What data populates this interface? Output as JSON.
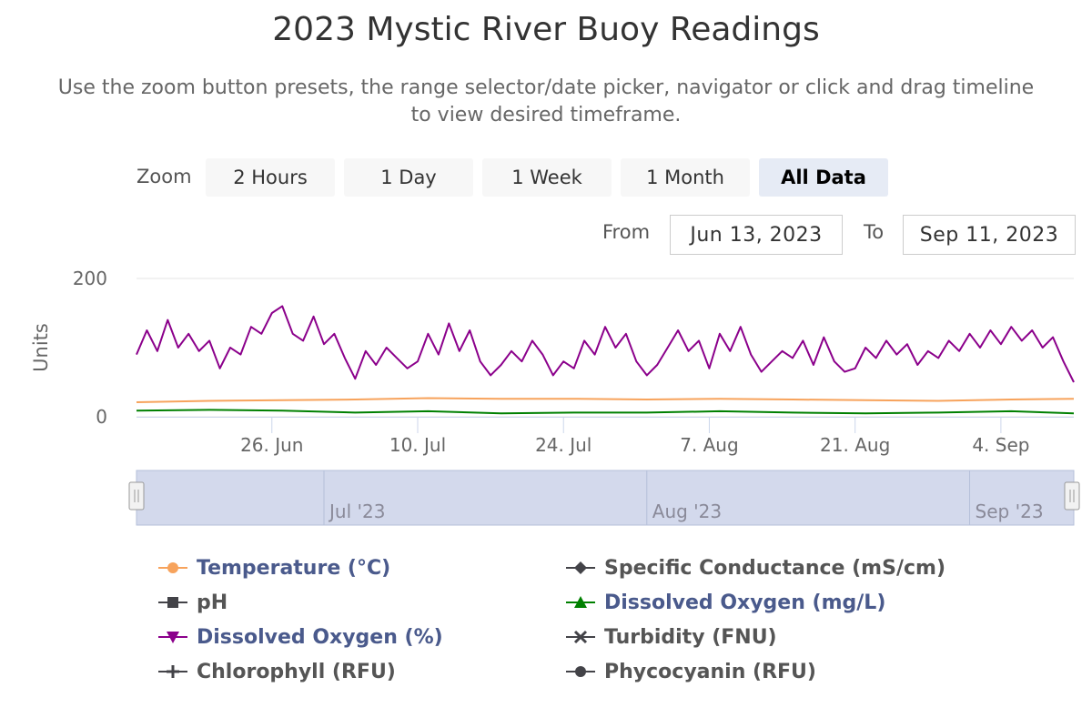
{
  "header": {
    "title": "2023 Mystic River Buoy Readings",
    "subtitle": "Use the zoom button presets, the range selector/date picker, navigator or click and drag timeline to view desired timeframe."
  },
  "range_selector": {
    "zoom_label": "Zoom",
    "buttons": [
      "2 Hours",
      "1 Day",
      "1 Week",
      "1 Month",
      "All Data"
    ],
    "active_button": "All Data",
    "from_label": "From",
    "from_value": "Jun 13, 2023",
    "to_label": "To",
    "to_value": "Sep 11, 2023"
  },
  "navigator": {
    "labels": [
      "Jul '23",
      "Aug '23",
      "Sep '23"
    ],
    "handle_glyph": "⏸"
  },
  "colors": {
    "temperature": "#f7a35c",
    "do_mgl": "#008000",
    "do_pct": "#8b008b",
    "gray_series": "#434348",
    "axis_text": "#666666",
    "grid": "#e6e6e6",
    "legend_active": "#4a5a8c",
    "legend_inactive": "#555555",
    "navigator_fill": "#d3d9ec"
  },
  "chart_data": {
    "type": "line",
    "ylabel": "Units",
    "ylim": [
      0,
      200
    ],
    "yticks": [
      "0",
      "200"
    ],
    "xlim": [
      "2023-06-13",
      "2023-09-11"
    ],
    "xticks": [
      "26. Jun",
      "10. Jul",
      "24. Jul",
      "7. Aug",
      "21. Aug",
      "4. Sep"
    ],
    "xtick_dates": [
      "2023-06-26",
      "2023-07-10",
      "2023-07-24",
      "2023-08-07",
      "2023-08-21",
      "2023-09-04"
    ],
    "grid": false,
    "legend_position": "bottom",
    "series": [
      {
        "name": "Temperature (°C)",
        "marker": "circle",
        "visible": true,
        "color_key": "temperature",
        "points": [
          [
            "2023-06-13",
            21
          ],
          [
            "2023-06-20",
            23
          ],
          [
            "2023-06-27",
            24
          ],
          [
            "2023-07-04",
            25
          ],
          [
            "2023-07-11",
            27
          ],
          [
            "2023-07-18",
            26
          ],
          [
            "2023-07-25",
            26
          ],
          [
            "2023-08-01",
            25
          ],
          [
            "2023-08-08",
            26
          ],
          [
            "2023-08-15",
            25
          ],
          [
            "2023-08-22",
            24
          ],
          [
            "2023-08-29",
            23
          ],
          [
            "2023-09-05",
            25
          ],
          [
            "2023-09-11",
            26
          ]
        ]
      },
      {
        "name": "Specific Conductance (mS/cm)",
        "marker": "diamond",
        "visible": false,
        "color_key": "gray_series",
        "points": []
      },
      {
        "name": "pH",
        "marker": "square",
        "visible": false,
        "color_key": "gray_series",
        "points": []
      },
      {
        "name": "Dissolved Oxygen (mg/L)",
        "marker": "triangle",
        "visible": true,
        "color_key": "do_mgl",
        "points": [
          [
            "2023-06-13",
            9
          ],
          [
            "2023-06-20",
            10
          ],
          [
            "2023-06-27",
            9
          ],
          [
            "2023-07-04",
            6
          ],
          [
            "2023-07-11",
            8
          ],
          [
            "2023-07-18",
            5
          ],
          [
            "2023-07-25",
            6
          ],
          [
            "2023-08-01",
            6
          ],
          [
            "2023-08-08",
            8
          ],
          [
            "2023-08-15",
            6
          ],
          [
            "2023-08-22",
            5
          ],
          [
            "2023-08-29",
            6
          ],
          [
            "2023-09-05",
            8
          ],
          [
            "2023-09-11",
            5
          ]
        ]
      },
      {
        "name": "Dissolved Oxygen (%)",
        "marker": "triangle-down",
        "visible": true,
        "color_key": "do_pct",
        "points": [
          [
            "2023-06-13",
            90
          ],
          [
            "2023-06-14",
            125
          ],
          [
            "2023-06-15",
            95
          ],
          [
            "2023-06-16",
            140
          ],
          [
            "2023-06-17",
            100
          ],
          [
            "2023-06-18",
            120
          ],
          [
            "2023-06-19",
            95
          ],
          [
            "2023-06-20",
            110
          ],
          [
            "2023-06-21",
            70
          ],
          [
            "2023-06-22",
            100
          ],
          [
            "2023-06-23",
            90
          ],
          [
            "2023-06-24",
            130
          ],
          [
            "2023-06-25",
            120
          ],
          [
            "2023-06-26",
            150
          ],
          [
            "2023-06-27",
            160
          ],
          [
            "2023-06-28",
            120
          ],
          [
            "2023-06-29",
            110
          ],
          [
            "2023-06-30",
            145
          ],
          [
            "2023-07-01",
            105
          ],
          [
            "2023-07-02",
            120
          ],
          [
            "2023-07-03",
            85
          ],
          [
            "2023-07-04",
            55
          ],
          [
            "2023-07-05",
            95
          ],
          [
            "2023-07-06",
            75
          ],
          [
            "2023-07-07",
            100
          ],
          [
            "2023-07-08",
            85
          ],
          [
            "2023-07-09",
            70
          ],
          [
            "2023-07-10",
            80
          ],
          [
            "2023-07-11",
            120
          ],
          [
            "2023-07-12",
            90
          ],
          [
            "2023-07-13",
            135
          ],
          [
            "2023-07-14",
            95
          ],
          [
            "2023-07-15",
            125
          ],
          [
            "2023-07-16",
            80
          ],
          [
            "2023-07-17",
            60
          ],
          [
            "2023-07-18",
            75
          ],
          [
            "2023-07-19",
            95
          ],
          [
            "2023-07-20",
            80
          ],
          [
            "2023-07-21",
            110
          ],
          [
            "2023-07-22",
            90
          ],
          [
            "2023-07-23",
            60
          ],
          [
            "2023-07-24",
            80
          ],
          [
            "2023-07-25",
            70
          ],
          [
            "2023-07-26",
            110
          ],
          [
            "2023-07-27",
            90
          ],
          [
            "2023-07-28",
            130
          ],
          [
            "2023-07-29",
            100
          ],
          [
            "2023-07-30",
            120
          ],
          [
            "2023-07-31",
            80
          ],
          [
            "2023-08-01",
            60
          ],
          [
            "2023-08-02",
            75
          ],
          [
            "2023-08-03",
            100
          ],
          [
            "2023-08-04",
            125
          ],
          [
            "2023-08-05",
            95
          ],
          [
            "2023-08-06",
            110
          ],
          [
            "2023-08-07",
            70
          ],
          [
            "2023-08-08",
            120
          ],
          [
            "2023-08-09",
            95
          ],
          [
            "2023-08-10",
            130
          ],
          [
            "2023-08-11",
            90
          ],
          [
            "2023-08-12",
            65
          ],
          [
            "2023-08-13",
            80
          ],
          [
            "2023-08-14",
            95
          ],
          [
            "2023-08-15",
            85
          ],
          [
            "2023-08-16",
            110
          ],
          [
            "2023-08-17",
            75
          ],
          [
            "2023-08-18",
            115
          ],
          [
            "2023-08-19",
            80
          ],
          [
            "2023-08-20",
            65
          ],
          [
            "2023-08-21",
            70
          ],
          [
            "2023-08-22",
            100
          ],
          [
            "2023-08-23",
            85
          ],
          [
            "2023-08-24",
            110
          ],
          [
            "2023-08-25",
            90
          ],
          [
            "2023-08-26",
            105
          ],
          [
            "2023-08-27",
            75
          ],
          [
            "2023-08-28",
            95
          ],
          [
            "2023-08-29",
            85
          ],
          [
            "2023-08-30",
            110
          ],
          [
            "2023-08-31",
            95
          ],
          [
            "2023-09-01",
            120
          ],
          [
            "2023-09-02",
            100
          ],
          [
            "2023-09-03",
            125
          ],
          [
            "2023-09-04",
            105
          ],
          [
            "2023-09-05",
            130
          ],
          [
            "2023-09-06",
            110
          ],
          [
            "2023-09-07",
            125
          ],
          [
            "2023-09-08",
            100
          ],
          [
            "2023-09-09",
            115
          ],
          [
            "2023-09-10",
            80
          ],
          [
            "2023-09-11",
            50
          ]
        ]
      },
      {
        "name": "Turbidity (FNU)",
        "marker": "cross",
        "visible": false,
        "color_key": "gray_series",
        "points": []
      },
      {
        "name": "Chlorophyll (RFU)",
        "marker": "plus",
        "visible": false,
        "color_key": "gray_series",
        "points": []
      },
      {
        "name": "Phycocyanin (RFU)",
        "marker": "circle",
        "visible": false,
        "color_key": "gray_series",
        "points": []
      }
    ]
  }
}
